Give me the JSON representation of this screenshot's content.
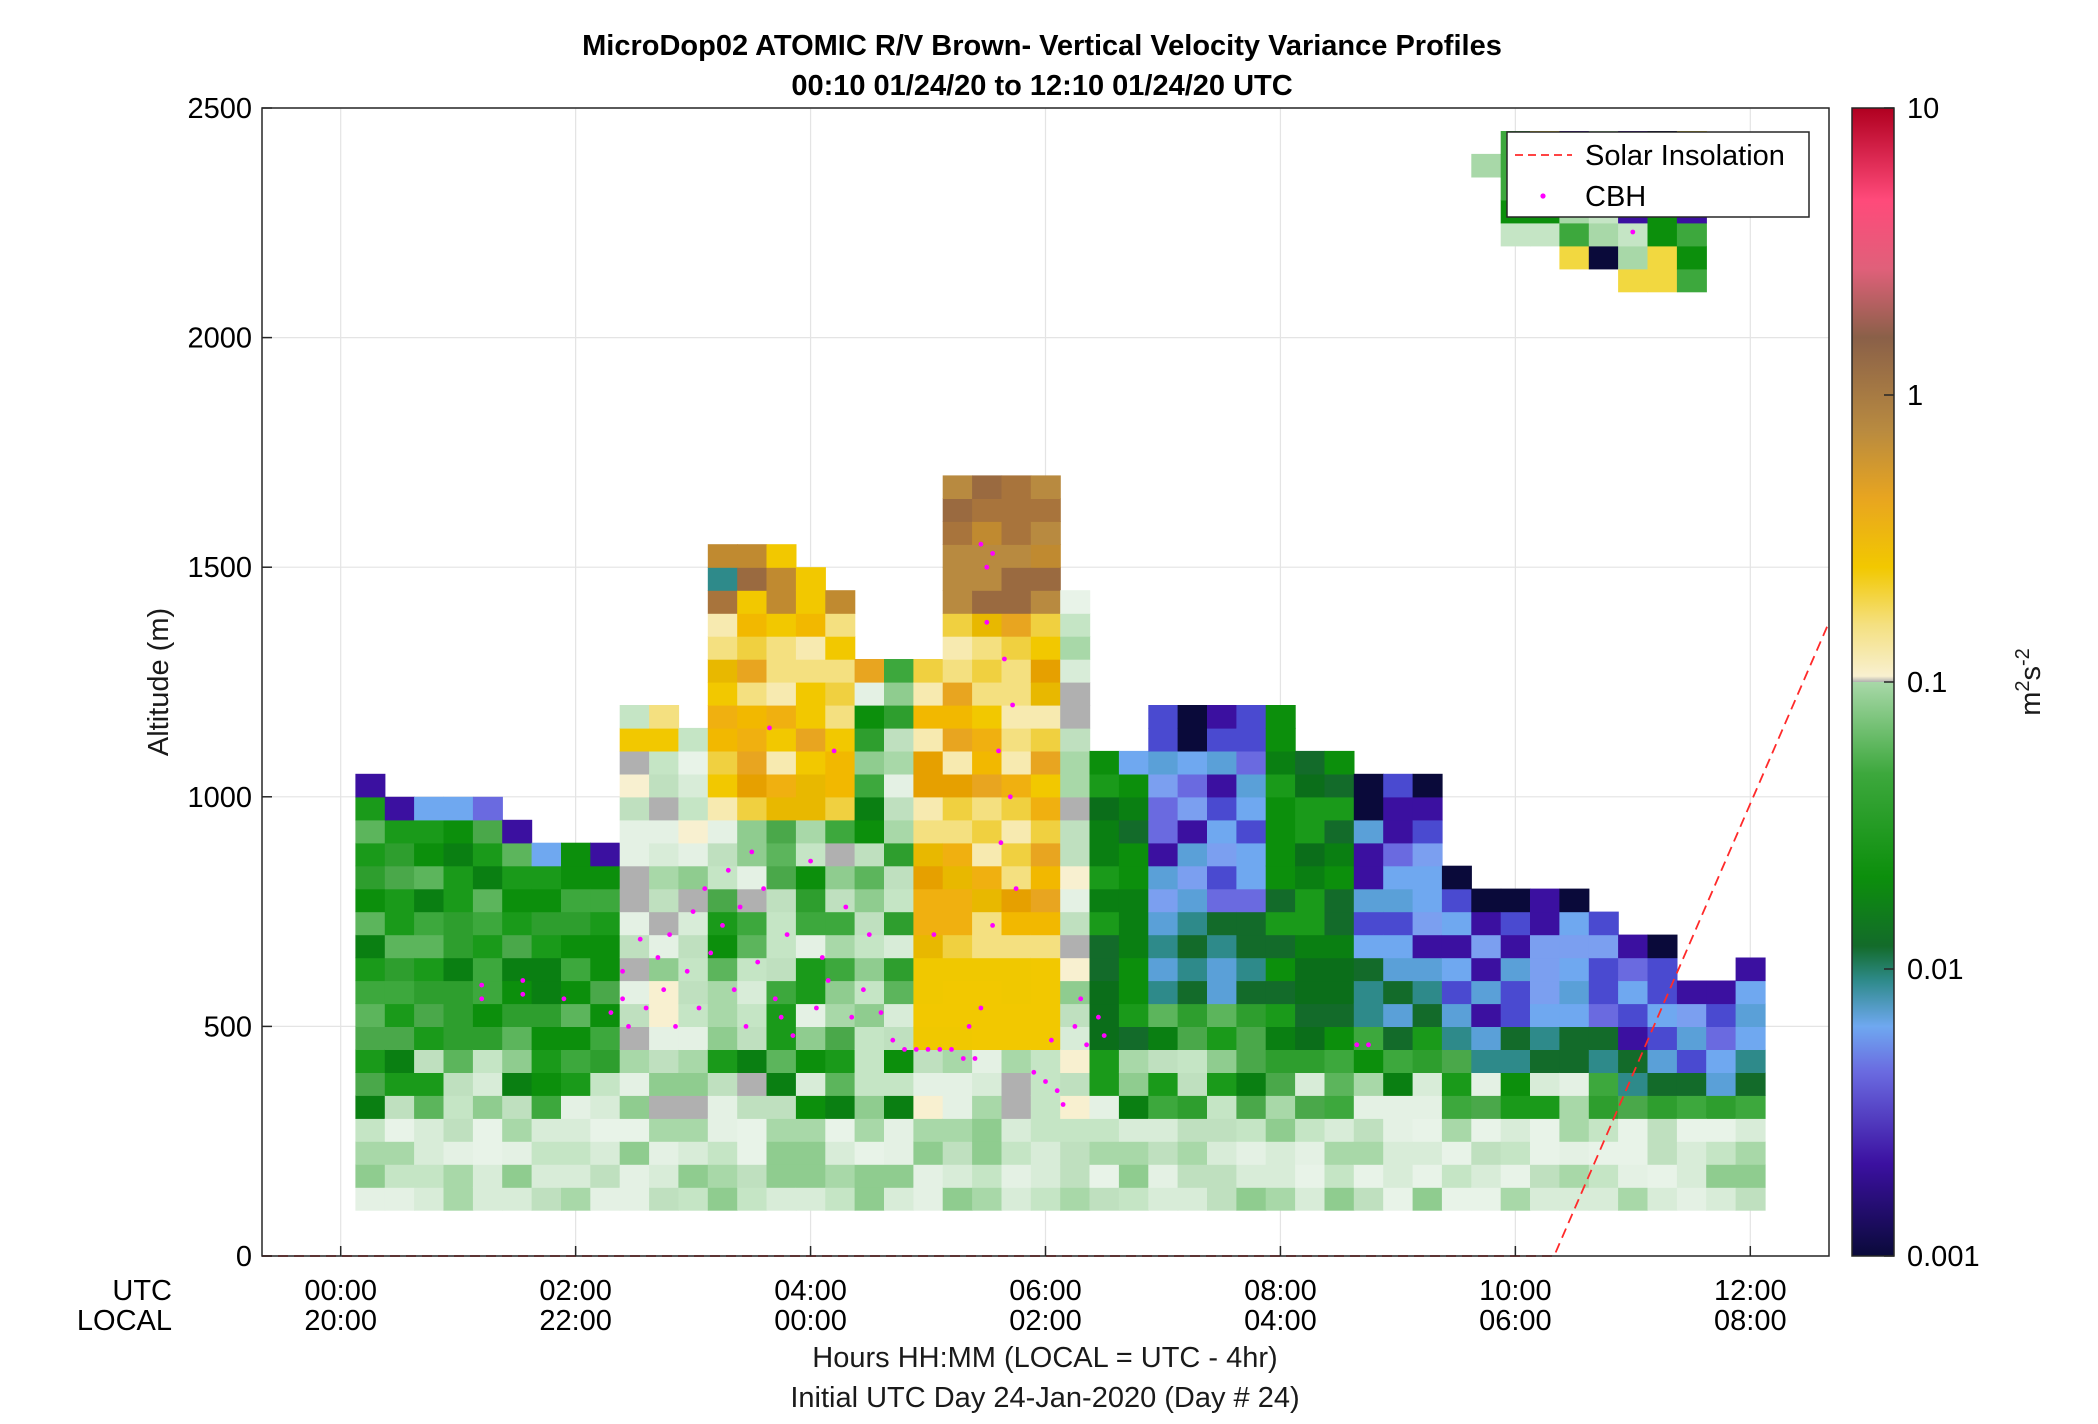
{
  "chart_data": {
    "type": "heatmap",
    "title": "MicroDop02 ATOMIC R/V Brown- Vertical Velocity Variance Profiles",
    "subtitle": "00:10 01/24/20 to 12:10 01/24/20  UTC",
    "ylabel": "Altitude (m)",
    "xlabel": "Hours HH:MM  (LOCAL = UTC - 4hr)",
    "xlabel2": "Initial UTC Day 24-Jan-2020 (Day # 24)",
    "x_row_label_utc": "UTC",
    "x_row_label_local": "LOCAL",
    "xlim_hours_utc": [
      -0.67,
      12.67
    ],
    "ylim": [
      0,
      2500
    ],
    "y_ticks": [
      0,
      500,
      1000,
      1500,
      2000,
      2500
    ],
    "x_ticks": [
      {
        "hour": 0,
        "utc": "00:00",
        "local": "20:00"
      },
      {
        "hour": 2,
        "utc": "02:00",
        "local": "22:00"
      },
      {
        "hour": 4,
        "utc": "04:00",
        "local": "00:00"
      },
      {
        "hour": 6,
        "utc": "06:00",
        "local": "02:00"
      },
      {
        "hour": 8,
        "utc": "08:00",
        "local": "04:00"
      },
      {
        "hour": 10,
        "utc": "10:00",
        "local": "06:00"
      },
      {
        "hour": 12,
        "utc": "12:00",
        "local": "08:00"
      }
    ],
    "grid": true,
    "colorbar": {
      "scale": "log",
      "range": [
        0.001,
        10
      ],
      "ticks": [
        "0.001",
        "0.01",
        "0.1",
        "1",
        "10"
      ],
      "label_base": "m",
      "label_sup1": "2",
      "label_mid": "s",
      "label_sup2": "-2"
    },
    "legend": {
      "placement": "top-right",
      "entries": [
        {
          "name": "Solar Insolation",
          "style": "dashed-line",
          "color": "#ff2a2a"
        },
        {
          "name": "CBH",
          "style": "point",
          "color": "#ff00ff"
        }
      ]
    },
    "gate_spacing_m": 50,
    "first_gate_m": 100,
    "columns": [
      {
        "hour": 0.25,
        "top": 1050,
        "bottom": 100,
        "pattern": "green"
      },
      {
        "hour": 0.5,
        "top": 1000,
        "bottom": 100,
        "pattern": "green"
      },
      {
        "hour": 0.75,
        "top": 1000,
        "bottom": 100,
        "pattern": "green"
      },
      {
        "hour": 1.0,
        "top": 1000,
        "bottom": 100,
        "pattern": "green"
      },
      {
        "hour": 1.25,
        "top": 1000,
        "bottom": 100,
        "pattern": "green"
      },
      {
        "hour": 1.5,
        "top": 950,
        "bottom": 100,
        "pattern": "green"
      },
      {
        "hour": 1.75,
        "top": 900,
        "bottom": 100,
        "pattern": "green"
      },
      {
        "hour": 2.0,
        "top": 900,
        "bottom": 100,
        "pattern": "green"
      },
      {
        "hour": 2.25,
        "top": 900,
        "bottom": 100,
        "pattern": "green"
      },
      {
        "hour": 2.5,
        "top": 1200,
        "bottom": 100,
        "pattern": "pale"
      },
      {
        "hour": 2.75,
        "top": 1200,
        "bottom": 100,
        "pattern": "pale"
      },
      {
        "hour": 3.0,
        "top": 1150,
        "bottom": 100,
        "pattern": "pale"
      },
      {
        "hour": 3.25,
        "top": 1550,
        "bottom": 100,
        "pattern": "yellow"
      },
      {
        "hour": 3.5,
        "top": 1550,
        "bottom": 100,
        "pattern": "yellow"
      },
      {
        "hour": 3.75,
        "top": 1550,
        "bottom": 100,
        "pattern": "yellow"
      },
      {
        "hour": 4.0,
        "top": 1500,
        "bottom": 100,
        "pattern": "yellow"
      },
      {
        "hour": 4.25,
        "top": 1450,
        "bottom": 100,
        "pattern": "yellow"
      },
      {
        "hour": 4.5,
        "top": 1300,
        "bottom": 100,
        "pattern": "mixed"
      },
      {
        "hour": 4.75,
        "top": 1300,
        "bottom": 100,
        "pattern": "mixed"
      },
      {
        "hour": 5.0,
        "top": 1300,
        "bottom": 100,
        "pattern": "orange"
      },
      {
        "hour": 5.25,
        "top": 1700,
        "bottom": 100,
        "pattern": "orange"
      },
      {
        "hour": 5.5,
        "top": 1700,
        "bottom": 100,
        "pattern": "orange"
      },
      {
        "hour": 5.75,
        "top": 1700,
        "bottom": 100,
        "pattern": "orange"
      },
      {
        "hour": 6.0,
        "top": 1700,
        "bottom": 100,
        "pattern": "orange"
      },
      {
        "hour": 6.25,
        "top": 1450,
        "bottom": 100,
        "pattern": "pale"
      },
      {
        "hour": 6.5,
        "top": 1100,
        "bottom": 100,
        "pattern": "dkgreen"
      },
      {
        "hour": 6.75,
        "top": 1100,
        "bottom": 100,
        "pattern": "dkgreen"
      },
      {
        "hour": 7.0,
        "top": 1200,
        "bottom": 100,
        "pattern": "blue"
      },
      {
        "hour": 7.25,
        "top": 1200,
        "bottom": 100,
        "pattern": "blue"
      },
      {
        "hour": 7.5,
        "top": 1200,
        "bottom": 100,
        "pattern": "blue"
      },
      {
        "hour": 7.75,
        "top": 1200,
        "bottom": 100,
        "pattern": "blue"
      },
      {
        "hour": 8.0,
        "top": 1200,
        "bottom": 100,
        "pattern": "dkgreen"
      },
      {
        "hour": 8.25,
        "top": 1100,
        "bottom": 100,
        "pattern": "dkgreen"
      },
      {
        "hour": 8.5,
        "top": 1100,
        "bottom": 100,
        "pattern": "dkgreen"
      },
      {
        "hour": 8.75,
        "top": 1050,
        "bottom": 100,
        "pattern": "blue"
      },
      {
        "hour": 9.0,
        "top": 1050,
        "bottom": 100,
        "pattern": "blue"
      },
      {
        "hour": 9.25,
        "top": 1050,
        "bottom": 100,
        "pattern": "blue"
      },
      {
        "hour": 9.5,
        "top": 850,
        "bottom": 100,
        "pattern": "blue"
      },
      {
        "hour": 9.75,
        "top": 800,
        "bottom": 100,
        "pattern": "blue"
      },
      {
        "hour": 10.0,
        "top": 800,
        "bottom": 100,
        "pattern": "blue"
      },
      {
        "hour": 10.25,
        "top": 800,
        "bottom": 100,
        "pattern": "blue"
      },
      {
        "hour": 10.5,
        "top": 800,
        "bottom": 100,
        "pattern": "blue"
      },
      {
        "hour": 10.75,
        "top": 750,
        "bottom": 100,
        "pattern": "blue"
      },
      {
        "hour": 11.0,
        "top": 700,
        "bottom": 100,
        "pattern": "blue"
      },
      {
        "hour": 11.25,
        "top": 700,
        "bottom": 100,
        "pattern": "blue"
      },
      {
        "hour": 11.5,
        "top": 600,
        "bottom": 100,
        "pattern": "blue"
      },
      {
        "hour": 11.75,
        "top": 600,
        "bottom": 100,
        "pattern": "blue"
      },
      {
        "hour": 12.0,
        "top": 650,
        "bottom": 100,
        "pattern": "blue"
      }
    ],
    "upper_patch": [
      {
        "hour": 9.75,
        "top": 2400,
        "bottom": 2350
      },
      {
        "hour": 10.0,
        "top": 2450,
        "bottom": 2200
      },
      {
        "hour": 10.25,
        "top": 2450,
        "bottom": 2200
      },
      {
        "hour": 10.5,
        "top": 2450,
        "bottom": 2150
      },
      {
        "hour": 10.75,
        "top": 2450,
        "bottom": 2150
      },
      {
        "hour": 11.0,
        "top": 2450,
        "bottom": 2100
      },
      {
        "hour": 11.25,
        "top": 2450,
        "bottom": 2100
      },
      {
        "hour": 11.5,
        "top": 2450,
        "bottom": 2100
      }
    ],
    "cbh_points": [
      {
        "hour": 1.2,
        "alt": 560
      },
      {
        "hour": 1.2,
        "alt": 590
      },
      {
        "hour": 1.55,
        "alt": 570
      },
      {
        "hour": 1.55,
        "alt": 600
      },
      {
        "hour": 1.9,
        "alt": 560
      },
      {
        "hour": 2.3,
        "alt": 530
      },
      {
        "hour": 2.4,
        "alt": 560
      },
      {
        "hour": 2.4,
        "alt": 620
      },
      {
        "hour": 2.45,
        "alt": 500
      },
      {
        "hour": 2.55,
        "alt": 690
      },
      {
        "hour": 2.6,
        "alt": 540
      },
      {
        "hour": 2.7,
        "alt": 650
      },
      {
        "hour": 2.75,
        "alt": 580
      },
      {
        "hour": 2.8,
        "alt": 700
      },
      {
        "hour": 2.85,
        "alt": 500
      },
      {
        "hour": 2.95,
        "alt": 620
      },
      {
        "hour": 3.0,
        "alt": 750
      },
      {
        "hour": 3.05,
        "alt": 540
      },
      {
        "hour": 3.1,
        "alt": 800
      },
      {
        "hour": 3.15,
        "alt": 660
      },
      {
        "hour": 3.25,
        "alt": 720
      },
      {
        "hour": 3.3,
        "alt": 840
      },
      {
        "hour": 3.35,
        "alt": 580
      },
      {
        "hour": 3.4,
        "alt": 760
      },
      {
        "hour": 3.45,
        "alt": 500
      },
      {
        "hour": 3.5,
        "alt": 880
      },
      {
        "hour": 3.55,
        "alt": 640
      },
      {
        "hour": 3.6,
        "alt": 800
      },
      {
        "hour": 3.65,
        "alt": 1150
      },
      {
        "hour": 3.7,
        "alt": 560
      },
      {
        "hour": 3.75,
        "alt": 520
      },
      {
        "hour": 3.8,
        "alt": 700
      },
      {
        "hour": 3.85,
        "alt": 480
      },
      {
        "hour": 4.0,
        "alt": 860
      },
      {
        "hour": 4.05,
        "alt": 540
      },
      {
        "hour": 4.1,
        "alt": 650
      },
      {
        "hour": 4.15,
        "alt": 600
      },
      {
        "hour": 4.2,
        "alt": 1100
      },
      {
        "hour": 4.3,
        "alt": 760
      },
      {
        "hour": 4.35,
        "alt": 520
      },
      {
        "hour": 4.45,
        "alt": 580
      },
      {
        "hour": 4.5,
        "alt": 700
      },
      {
        "hour": 4.6,
        "alt": 530
      },
      {
        "hour": 4.7,
        "alt": 470
      },
      {
        "hour": 4.8,
        "alt": 450
      },
      {
        "hour": 4.9,
        "alt": 450
      },
      {
        "hour": 5.0,
        "alt": 450
      },
      {
        "hour": 5.05,
        "alt": 700
      },
      {
        "hour": 5.1,
        "alt": 450
      },
      {
        "hour": 5.2,
        "alt": 450
      },
      {
        "hour": 5.3,
        "alt": 430
      },
      {
        "hour": 5.35,
        "alt": 500
      },
      {
        "hour": 5.4,
        "alt": 430
      },
      {
        "hour": 5.45,
        "alt": 540
      },
      {
        "hour": 5.45,
        "alt": 1550
      },
      {
        "hour": 5.5,
        "alt": 1500
      },
      {
        "hour": 5.5,
        "alt": 1380
      },
      {
        "hour": 5.55,
        "alt": 1530
      },
      {
        "hour": 5.55,
        "alt": 720
      },
      {
        "hour": 5.6,
        "alt": 1100
      },
      {
        "hour": 5.62,
        "alt": 900
      },
      {
        "hour": 5.65,
        "alt": 1300
      },
      {
        "hour": 5.7,
        "alt": 1000
      },
      {
        "hour": 5.72,
        "alt": 1200
      },
      {
        "hour": 5.75,
        "alt": 800
      },
      {
        "hour": 5.9,
        "alt": 400
      },
      {
        "hour": 6.0,
        "alt": 380
      },
      {
        "hour": 6.05,
        "alt": 470
      },
      {
        "hour": 6.1,
        "alt": 360
      },
      {
        "hour": 6.15,
        "alt": 330
      },
      {
        "hour": 6.25,
        "alt": 500
      },
      {
        "hour": 6.3,
        "alt": 560
      },
      {
        "hour": 6.35,
        "alt": 460
      },
      {
        "hour": 6.45,
        "alt": 520
      },
      {
        "hour": 6.5,
        "alt": 480
      },
      {
        "hour": 8.65,
        "alt": 460
      },
      {
        "hour": 8.75,
        "alt": 460
      },
      {
        "hour": 11.0,
        "alt": 2230
      }
    ],
    "solar_insolation": {
      "x": [
        -0.67,
        10.33,
        12.67
      ],
      "y": [
        0,
        0,
        1380
      ]
    }
  }
}
